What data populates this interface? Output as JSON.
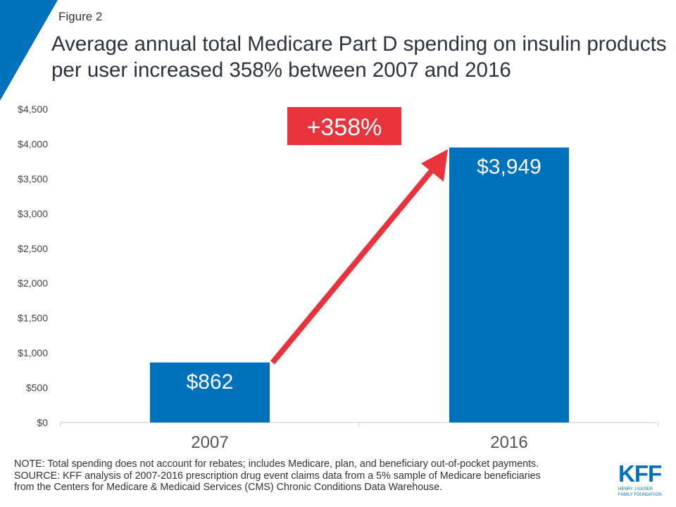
{
  "figure_label": "Figure 2",
  "title": "Average annual total Medicare Part D spending on insulin products per user increased 358% between 2007 and 2016",
  "chart_data": {
    "type": "bar",
    "categories": [
      "2007",
      "2016"
    ],
    "values": [
      862,
      3949
    ],
    "data_labels": [
      "$862",
      "$3,949"
    ],
    "ylim": [
      0,
      4500
    ],
    "yticks": [
      0,
      500,
      1000,
      1500,
      2000,
      2500,
      3000,
      3500,
      4000,
      4500
    ],
    "ytick_labels": [
      "$0",
      "$500",
      "$1,000",
      "$1,500",
      "$2,000",
      "$2,500",
      "$3,000",
      "$3,500",
      "$4,000",
      "$4,500"
    ],
    "grid": false,
    "annotation": "+358%",
    "colors": {
      "bar": "#0071bc",
      "annotation": "#e8323c"
    }
  },
  "notes": [
    "NOTE: Total spending does not account for rebates; includes Medicare, plan, and beneficiary out-of-pocket payments.",
    "SOURCE: KFF analysis of 2007-2016 prescription drug event claims data from a 5% sample of Medicare beneficiaries",
    "from the Centers for Medicare & Medicaid Services (CMS) Chronic Conditions Data Warehouse."
  ],
  "logo": {
    "mark": "KFF",
    "line1": "HENRY J KAISER",
    "line2": "FAMILY FOUNDATION"
  }
}
